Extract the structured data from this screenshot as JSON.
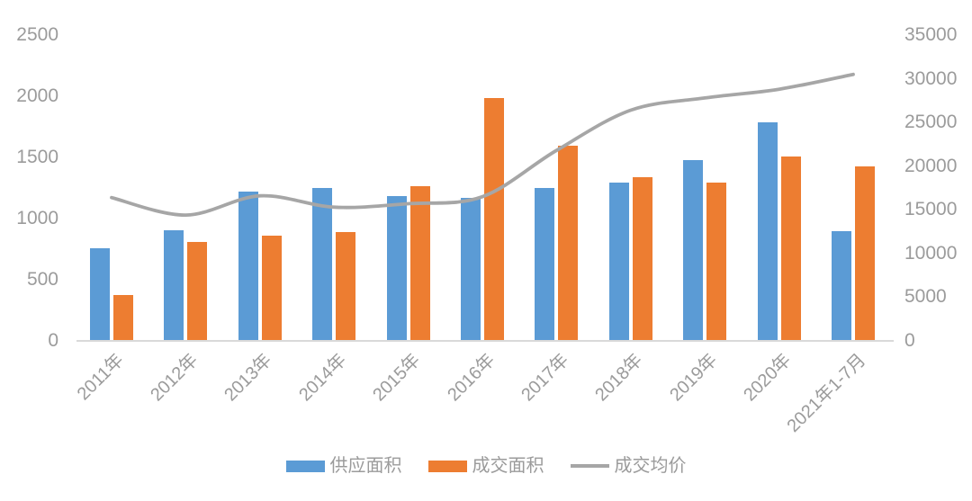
{
  "chart_data": {
    "type": "bar+line-combo",
    "categories": [
      "2011年",
      "2012年",
      "2013年",
      "2014年",
      "2015年",
      "2016年",
      "2017年",
      "2018年",
      "2019年",
      "2020年",
      "2021年1-7月"
    ],
    "series": [
      {
        "name": "供应面积",
        "chart_type": "bar",
        "axis": "left",
        "color": "#5B9BD5",
        "values": [
          750,
          900,
          1210,
          1240,
          1180,
          1160,
          1240,
          1290,
          1470,
          1780,
          890
        ]
      },
      {
        "name": "成交面积",
        "chart_type": "bar",
        "axis": "left",
        "color": "#ED7D31",
        "values": [
          370,
          800,
          850,
          880,
          1260,
          1980,
          1590,
          1330,
          1290,
          1500,
          1420
        ]
      },
      {
        "name": "成交均价",
        "chart_type": "line",
        "axis": "right",
        "color": "#A6A6A6",
        "values": [
          16300,
          14300,
          16500,
          15200,
          15600,
          16400,
          21700,
          26300,
          27700,
          28700,
          30400
        ]
      }
    ],
    "left_axis": {
      "min": 0,
      "max": 2500,
      "step": 500,
      "tick_labels": [
        "0",
        "500",
        "1000",
        "1500",
        "2000",
        "2500"
      ]
    },
    "right_axis": {
      "min": 0,
      "max": 35000,
      "step": 5000,
      "tick_labels": [
        "0",
        "5000",
        "10000",
        "15000",
        "20000",
        "25000",
        "30000",
        "35000"
      ]
    },
    "legend_position": "bottom",
    "grid": false
  },
  "colors": {
    "supply_bar": "#5B9BD5",
    "deal_bar": "#ED7D31",
    "price_line": "#A6A6A6",
    "axis_text": "#9B9B9B",
    "baseline": "#D9D9D9",
    "background": "#FFFFFF"
  }
}
